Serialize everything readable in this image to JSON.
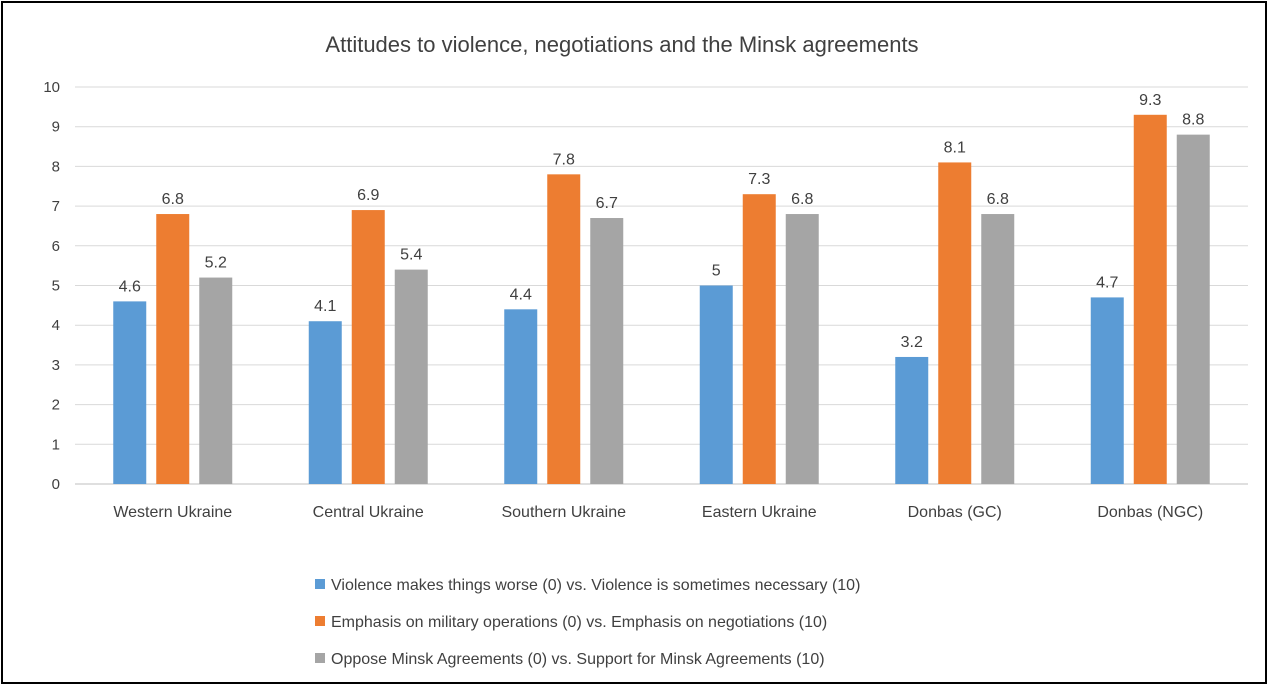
{
  "chart_data": {
    "type": "bar",
    "title": "Attitudes to violence, negotiations and the Minsk agreements",
    "categories": [
      "Western Ukraine",
      "Central Ukraine",
      "Southern Ukraine",
      "Eastern Ukraine",
      "Donbas (GC)",
      "Donbas (NGC)"
    ],
    "series": [
      {
        "name": "Violence makes things worse (0) vs. Violence is sometimes necessary (10)",
        "values": [
          4.6,
          4.1,
          4.4,
          5,
          3.2,
          4.7
        ],
        "labels": [
          "4.6",
          "4.1",
          "4.4",
          "5",
          "3.2",
          "4.7"
        ],
        "color": "#5b9bd5"
      },
      {
        "name": "Emphasis on military operations (0) vs. Emphasis on negotiations (10)",
        "values": [
          6.8,
          6.9,
          7.8,
          7.3,
          8.1,
          9.3
        ],
        "labels": [
          "6.8",
          "6.9",
          "7.8",
          "7.3",
          "8.1",
          "9.3"
        ],
        "color": "#ed7d31"
      },
      {
        "name": "Oppose Minsk Agreements (0) vs. Support for Minsk Agreements (10)",
        "values": [
          5.2,
          5.4,
          6.7,
          6.8,
          6.8,
          8.8
        ],
        "labels": [
          "5.2",
          "5.4",
          "6.7",
          "6.8",
          "6.8",
          "8.8"
        ],
        "color": "#a5a5a5"
      }
    ],
    "xlabel": "",
    "ylabel": "",
    "ylim": [
      0,
      10
    ],
    "yticks": [
      0,
      1,
      2,
      3,
      4,
      5,
      6,
      7,
      8,
      9,
      10
    ],
    "grid": true,
    "legend": "bottom"
  }
}
